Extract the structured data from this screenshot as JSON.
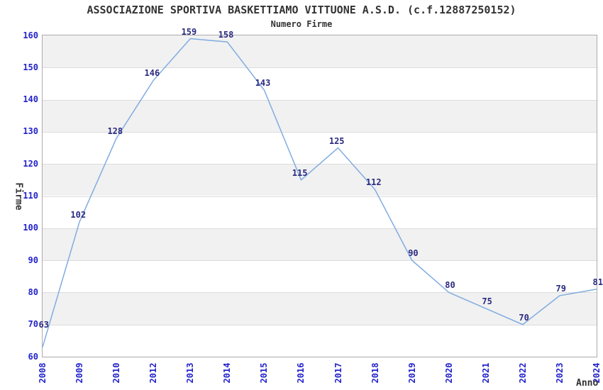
{
  "header": {
    "title": "ASSOCIAZIONE SPORTIVA BASKETTIAMO VITTUONE A.S.D. (c.f.12887250152)",
    "subtitle": "Numero Firme"
  },
  "chart_data": {
    "type": "line",
    "title": "ASSOCIAZIONE SPORTIVA BASKETTIAMO VITTUONE A.S.D. (c.f.12887250152)",
    "subtitle": "Numero Firme",
    "xlabel": "Anno",
    "ylabel": "Firme",
    "categories": [
      "2008",
      "2009",
      "2010",
      "2012",
      "2013",
      "2014",
      "2015",
      "2016",
      "2017",
      "2018",
      "2019",
      "2020",
      "2021",
      "2022",
      "2023",
      "2024"
    ],
    "series": [
      {
        "name": "Numero Firme",
        "values": [
          63,
          102,
          128,
          146,
          159,
          158,
          143,
          115,
          125,
          112,
          90,
          80,
          75,
          70,
          79,
          81
        ]
      }
    ],
    "ylim": [
      60,
      160
    ],
    "ytick_step": 10,
    "yticks": [
      60,
      70,
      80,
      90,
      100,
      110,
      120,
      130,
      140,
      150,
      160
    ],
    "grid": "horizontal-alternating-bands",
    "legend": "none",
    "data_labels_visible": true,
    "colors": {
      "line": "#7FACE0",
      "tick_label": "#2222CC",
      "data_label": "#2A2A80",
      "band_gray": "#F1F1F1",
      "gridline": "#DCDCDC",
      "plot_border": "#ABABAB",
      "title_text": "#333333",
      "background": "#FFFFFF"
    }
  }
}
